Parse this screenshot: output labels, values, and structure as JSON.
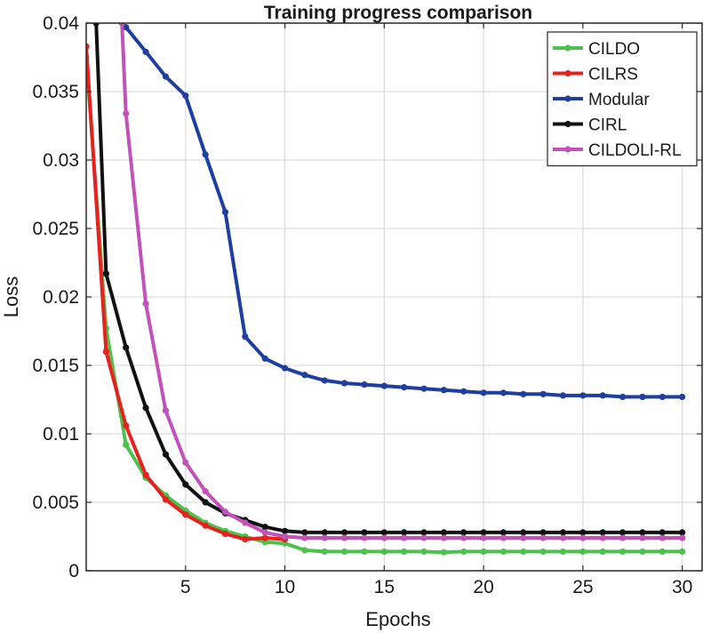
{
  "chart_data": {
    "type": "line",
    "title": "Training progress comparison",
    "xlabel": "Epochs",
    "ylabel": "Loss",
    "xlim": [
      0,
      31
    ],
    "ylim": [
      0,
      0.04
    ],
    "xticks": [
      5,
      10,
      15,
      20,
      25,
      30
    ],
    "xtick_labels": [
      "5",
      "10",
      "15",
      "20",
      "25",
      "30"
    ],
    "yticks": [
      0,
      0.005,
      0.01,
      0.015,
      0.02,
      0.025,
      0.03,
      0.035,
      0.04
    ],
    "ytick_labels": [
      "0",
      "0.005",
      "0.01",
      "0.015",
      "0.02",
      "0.025",
      "0.03",
      "0.035",
      "0.04"
    ],
    "grid": true,
    "legend_position": "top-right",
    "series": [
      {
        "name": "CILDO",
        "color": "#4cc24c",
        "x": [
          0,
          1,
          2,
          3,
          4,
          5,
          6,
          7,
          8,
          9,
          10,
          11,
          12,
          13,
          14,
          15,
          16,
          17,
          18,
          19,
          20,
          21,
          22,
          23,
          24,
          25,
          26,
          27,
          28,
          29,
          30
        ],
        "values": [
          0.0375,
          0.0177,
          0.0092,
          0.0068,
          0.0055,
          0.0044,
          0.0035,
          0.0029,
          0.0025,
          0.0021,
          0.002,
          0.0015,
          0.0014,
          0.0014,
          0.0014,
          0.0014,
          0.0014,
          0.0014,
          0.00135,
          0.0014,
          0.0014,
          0.0014,
          0.0014,
          0.0014,
          0.0014,
          0.0014,
          0.0014,
          0.0014,
          0.0014,
          0.0014,
          0.0014
        ]
      },
      {
        "name": "CILRS",
        "color": "#e8201e",
        "x": [
          0,
          1,
          2,
          3,
          4,
          5,
          6,
          7,
          8,
          9,
          10
        ],
        "values": [
          0.0383,
          0.016,
          0.0106,
          0.007,
          0.0052,
          0.0041,
          0.0033,
          0.0027,
          0.0023,
          0.0024,
          0.0023
        ]
      },
      {
        "name": "Modular",
        "color": "#1f3fa0",
        "x": [
          2,
          3,
          4,
          5,
          6,
          7,
          8,
          9,
          10,
          11,
          12,
          13,
          14,
          15,
          16,
          17,
          18,
          19,
          20,
          21,
          22,
          23,
          24,
          25,
          26,
          27,
          28,
          29,
          30
        ],
        "values": [
          0.0397,
          0.0379,
          0.0361,
          0.0347,
          0.0304,
          0.0262,
          0.0171,
          0.0155,
          0.0148,
          0.0143,
          0.0139,
          0.0137,
          0.0136,
          0.0135,
          0.0134,
          0.0133,
          0.0132,
          0.0131,
          0.013,
          0.013,
          0.0129,
          0.0129,
          0.0128,
          0.0128,
          0.0128,
          0.0127,
          0.0127,
          0.0127,
          0.0127
        ]
      },
      {
        "name": "CIRL",
        "color": "#111111",
        "x": [
          0.5,
          1,
          2,
          3,
          4,
          5,
          6,
          7,
          8,
          9,
          10,
          11,
          12,
          13,
          14,
          15,
          16,
          17,
          18,
          19,
          20,
          21,
          22,
          23,
          24,
          25,
          26,
          27,
          28,
          29,
          30
        ],
        "values": [
          0.04,
          0.0217,
          0.0163,
          0.0119,
          0.0085,
          0.0063,
          0.005,
          0.0042,
          0.0037,
          0.0032,
          0.0029,
          0.0028,
          0.0028,
          0.0028,
          0.0028,
          0.0028,
          0.0028,
          0.0028,
          0.0028,
          0.0028,
          0.0028,
          0.0028,
          0.0028,
          0.0028,
          0.0028,
          0.0028,
          0.0028,
          0.0028,
          0.0028,
          0.0028,
          0.0028
        ]
      },
      {
        "name": "CILDOLI-RL",
        "color": "#c052b8",
        "x": [
          1.8,
          2,
          3,
          4,
          5,
          6,
          7,
          8,
          9,
          10,
          11,
          12,
          13,
          14,
          15,
          16,
          17,
          18,
          19,
          20,
          21,
          22,
          23,
          24,
          25,
          26,
          27,
          28,
          29,
          30
        ],
        "values": [
          0.04,
          0.0334,
          0.0195,
          0.0117,
          0.0079,
          0.0058,
          0.0043,
          0.0035,
          0.0028,
          0.0025,
          0.0024,
          0.0024,
          0.0024,
          0.0024,
          0.0024,
          0.0024,
          0.0024,
          0.0024,
          0.0024,
          0.0024,
          0.0024,
          0.0024,
          0.0024,
          0.0024,
          0.0024,
          0.0024,
          0.0024,
          0.0024,
          0.0024,
          0.0024
        ]
      }
    ]
  }
}
